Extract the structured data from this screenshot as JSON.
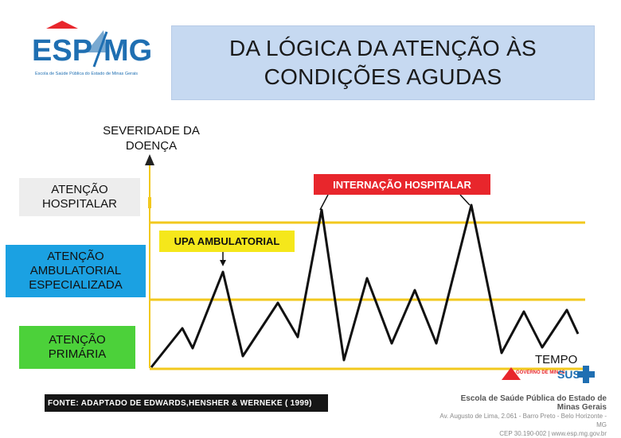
{
  "logo": {
    "text_esp": "ESP",
    "text_mg": "MG",
    "subtitle": "Escola de Saúde Pública do Estado de Minas Gerais"
  },
  "title": "DA LÓGICA DA ATENÇÃO ÀS\nCONDIÇÕES AGUDAS",
  "y_axis_label": "SEVERIDADE DA\nDOENÇA",
  "x_axis_label": "TEMPO",
  "levels": {
    "hospital": "ATENÇÃO\nHOSPITALAR",
    "specialized": "ATENÇÃO\nAMBULATORIAL\nESPECIALIZADA",
    "primary": "ATENÇÃO\nPRIMÁRIA"
  },
  "tags": {
    "internacao": "INTERNAÇÃO HOSPITALAR",
    "upa": "UPA AMBULATORIAL"
  },
  "source": "FONTE: ADAPTADO DE  EDWARDS,HENSHER & WERNEKE ( 1999)",
  "footer": {
    "school": "Escola de Saúde Pública do Estado de Minas Gerais",
    "address": "Av. Augusto de Lima, 2.061 - Barro Preto - Belo Horizonte - MG",
    "contact": "CEP 30.190-002 | www.esp.mg.gov.br"
  },
  "partner_logos": {
    "gov": "GOVERNO DE MINAS",
    "sus": "SUS"
  },
  "colors": {
    "level_line": "#f2c81e",
    "curve": "#111111",
    "internacao_bg": "#e8262c",
    "upa_bg": "#f5e71b",
    "specialized_bg": "#1ba1e2",
    "primary_bg": "#4cd13a",
    "hospital_bg": "#ededed",
    "title_bg": "#c6d9f1"
  }
}
